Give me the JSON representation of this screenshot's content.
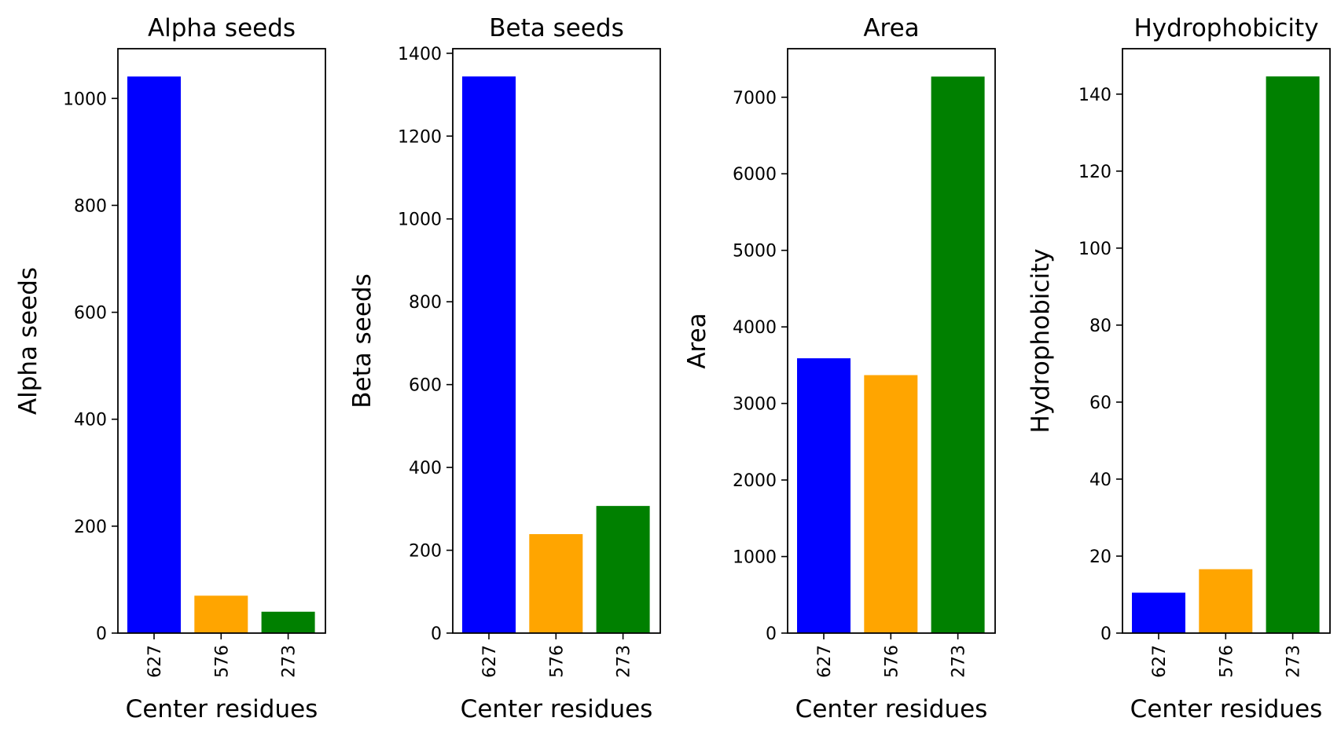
{
  "chart_data": [
    {
      "type": "bar",
      "title": "Alpha seeds",
      "xlabel": "Center residues",
      "ylabel": "Alpha seeds",
      "categories": [
        "627",
        "576",
        "273"
      ],
      "values": [
        1041,
        70,
        40
      ],
      "colors": [
        "#0000ff",
        "#ffa500",
        "#008000"
      ],
      "ylim": [
        0,
        1093
      ],
      "yticks": [
        0,
        200,
        400,
        600,
        800,
        1000
      ],
      "grid": false
    },
    {
      "type": "bar",
      "title": "Beta seeds",
      "xlabel": "Center residues",
      "ylabel": "Beta seeds",
      "categories": [
        "627",
        "576",
        "273"
      ],
      "values": [
        1344,
        239,
        307
      ],
      "colors": [
        "#0000ff",
        "#ffa500",
        "#008000"
      ],
      "ylim": [
        0,
        1411
      ],
      "yticks": [
        0,
        200,
        400,
        600,
        800,
        1000,
        1200,
        1400
      ],
      "grid": false
    },
    {
      "type": "bar",
      "title": "Area",
      "xlabel": "Center residues",
      "ylabel": "Area",
      "categories": [
        "627",
        "576",
        "273"
      ],
      "values": [
        3590,
        3370,
        7270
      ],
      "colors": [
        "#0000ff",
        "#ffa500",
        "#008000"
      ],
      "ylim": [
        0,
        7634
      ],
      "yticks": [
        0,
        1000,
        2000,
        3000,
        4000,
        5000,
        6000,
        7000
      ],
      "grid": false
    },
    {
      "type": "bar",
      "title": "Hydrophobicity",
      "xlabel": "Center residues",
      "ylabel": "Hydrophobicity",
      "categories": [
        "627",
        "576",
        "273"
      ],
      "values": [
        10.5,
        16.6,
        144.6
      ],
      "colors": [
        "#0000ff",
        "#ffa500",
        "#008000"
      ],
      "ylim": [
        0,
        151.8
      ],
      "yticks": [
        0,
        20,
        40,
        60,
        80,
        100,
        120,
        140
      ],
      "grid": false
    }
  ]
}
